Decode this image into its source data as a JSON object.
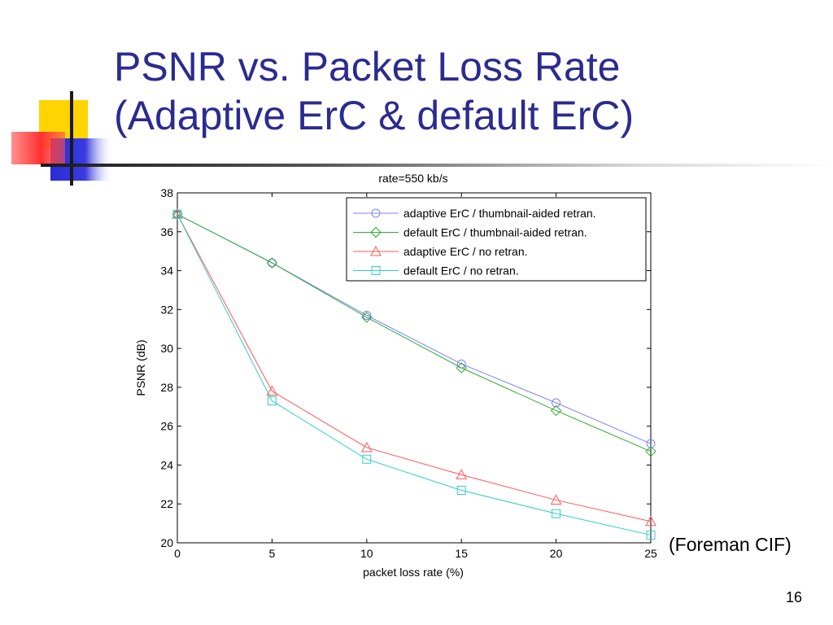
{
  "slide": {
    "title_line1": "PSNR vs. Packet Loss Rate",
    "title_line2": "(Adaptive ErC & default ErC)",
    "note": "(Foreman CIF)",
    "page_number": "16",
    "title_color": "#2b2b8f"
  },
  "chart_data": {
    "type": "line",
    "title": "rate=550 kb/s",
    "xlabel": "packet loss rate (%)",
    "ylabel": "PSNR (dB)",
    "xlim": [
      0,
      25
    ],
    "ylim": [
      20,
      38
    ],
    "xticks": [
      0,
      5,
      10,
      15,
      20,
      25
    ],
    "yticks": [
      20,
      22,
      24,
      26,
      28,
      30,
      32,
      34,
      36,
      38
    ],
    "grid": false,
    "legend_position": "top-right",
    "x": [
      0,
      5,
      10,
      15,
      20,
      25
    ],
    "series": [
      {
        "name": "adaptive ErC / thumbnail-aided retran.",
        "marker": "circle",
        "color": "#8080ff",
        "values": [
          36.9,
          34.4,
          31.7,
          29.2,
          27.2,
          25.1
        ]
      },
      {
        "name": "default ErC / thumbnail-aided retran.",
        "marker": "diamond",
        "color": "#33aa33",
        "values": [
          36.9,
          34.4,
          31.6,
          29.0,
          26.8,
          24.7
        ]
      },
      {
        "name": "adaptive ErC / no retran.",
        "marker": "triangle",
        "color": "#ff5555",
        "values": [
          36.9,
          27.8,
          24.9,
          23.5,
          22.2,
          21.1
        ]
      },
      {
        "name": "default ErC / no retran.",
        "marker": "square",
        "color": "#33cccc",
        "values": [
          36.9,
          27.3,
          24.3,
          22.7,
          21.5,
          20.4
        ]
      }
    ]
  }
}
